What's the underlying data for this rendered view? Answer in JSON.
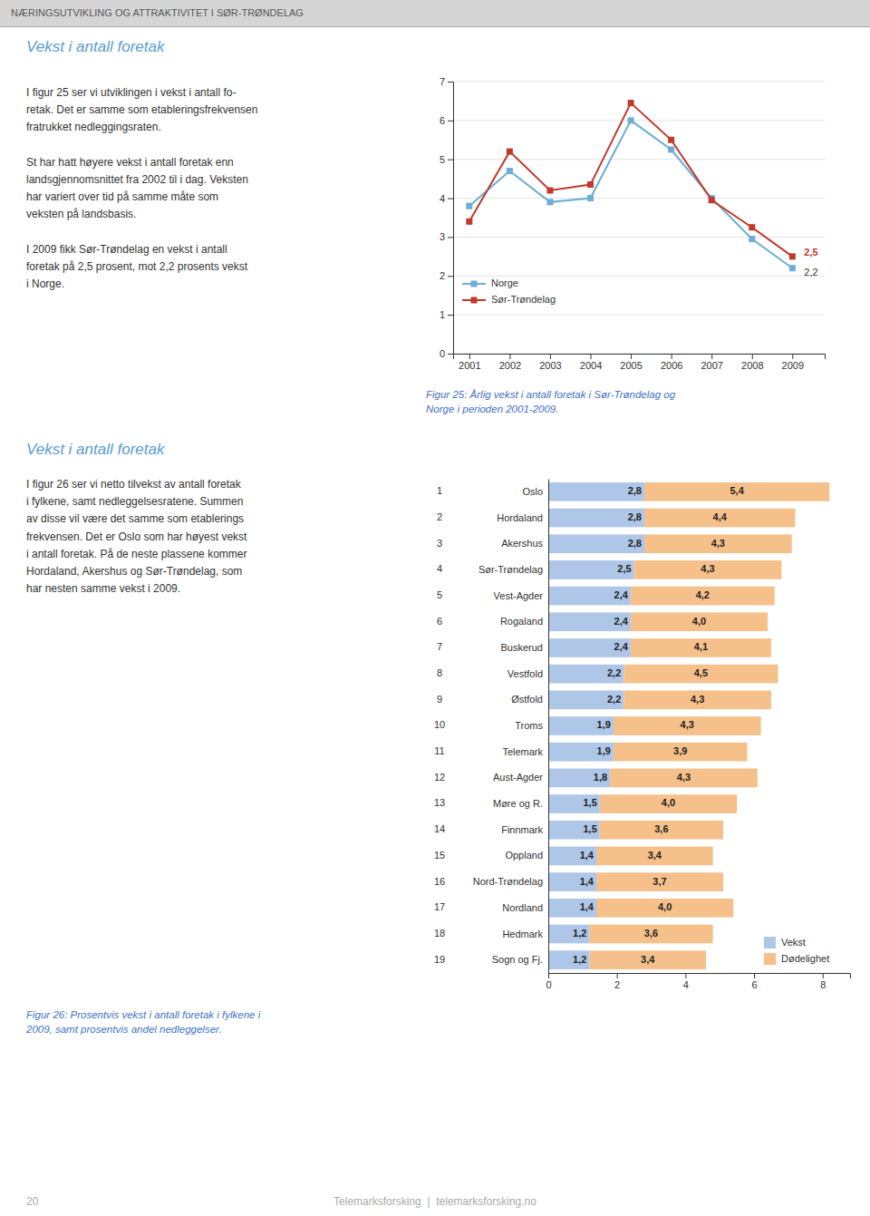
{
  "page_title": "NÆRINGSUTVIKLING OG ATTRAKTIVITET I SØR-TRØNDELAG",
  "section1_title": "Vekst i antall foretak",
  "section1_body": "I figur 25 ser vi utviklingen i vekst i antall fo-\nretak. Det er samme som etableringsfrekvensen\nfratrukket nedleggingsraten.\n\nSt har hatt høyere vekst i antall foretak enn\nlandsgjennomsnittet fra 2002 til i dag. Veksten\nhar variert over tid på samme måte som\nveksten på landsbasis.\n\nI 2009 fikk Sør-Trøndelag en vekst i antall\nforetak på 2,5 prosent, mot 2,2 prosents vekst\ni Norge.",
  "fig25_caption": "Figur 25: Årlig vekst i antall foretak i Sør-Trøndelag og\nNorge i perioden 2001-2009.",
  "section2_title": "Vekst i antall foretak",
  "section2_body": "I figur 26 ser vi netto tilvekst av antall foretak\ni fylkene, samt nedleggelsesratene. Summen\nav disse vil være det samme som etablerings\nfrekvensen. Det er Oslo som har høyest vekst\ni antall foretak. På de neste plassene kommer\nHordaland, Akershus og Sør-Trøndelag, som\nhar nesten samme vekst i 2009.",
  "fig26_caption": "Figur 26: Prosentvis vekst i antall foretak i fylkene i\n2009, samt prosentvis andel nedleggelser.",
  "page_number": "20",
  "footer_text": "Telemarksforsking  |  telemarksforsking.no",
  "chart_data": [
    {
      "type": "line",
      "x": [
        2001,
        2002,
        2003,
        2004,
        2005,
        2006,
        2007,
        2008,
        2009
      ],
      "xlim": [
        2000.6,
        2009.8
      ],
      "xticks": [
        2001,
        2002,
        2003,
        2004,
        2005,
        2006,
        2007,
        2008,
        2009
      ],
      "ylim": [
        0,
        7
      ],
      "yticks": [
        0,
        1,
        2,
        3,
        4,
        5,
        6,
        7
      ],
      "grid": true,
      "legend": "lower left",
      "series": [
        {
          "name": "Norge",
          "color": "#6baed6",
          "marker": "square",
          "values": [
            3.8,
            4.7,
            3.9,
            4.0,
            6.0,
            5.25,
            4.0,
            2.95,
            2.2
          ]
        },
        {
          "name": "Sør-Trøndelag",
          "color": "#c0392b",
          "marker": "square",
          "values": [
            3.4,
            5.2,
            4.2,
            4.35,
            6.45,
            5.5,
            3.95,
            3.25,
            2.5
          ]
        }
      ],
      "annotations": [
        {
          "text": "2,5",
          "x": 2009,
          "y": 2.5,
          "color": "#c0392b"
        },
        {
          "text": "2,2",
          "x": 2009,
          "y": 2.2,
          "color": "#333333"
        }
      ]
    },
    {
      "type": "bar",
      "orientation": "horizontal",
      "stacked": true,
      "data_labels": true,
      "grid": false,
      "legend": "lower right",
      "categories": [
        "Oslo",
        "Hordaland",
        "Akershus",
        "Sør-Trøndelag",
        "Vest-Agder",
        "Rogaland",
        "Buskerud",
        "Vestfold",
        "Østfold",
        "Troms",
        "Telemark",
        "Aust-Agder",
        "Møre og R.",
        "Finnmark",
        "Oppland",
        "Nord-Trøndelag",
        "Nordland",
        "Hedmark",
        "Sogn og Fj."
      ],
      "ranks": [
        "1",
        "2",
        "3",
        "4",
        "5",
        "6",
        "7",
        "8",
        "9",
        "10",
        "11",
        "12",
        "13",
        "14",
        "15",
        "16",
        "17",
        "18",
        "19"
      ],
      "xlim": [
        0,
        8.8
      ],
      "xticks": [
        0,
        2,
        4,
        6,
        8
      ],
      "series": [
        {
          "name": "Vekst",
          "color": "#aec6e8",
          "values": [
            2.8,
            2.8,
            2.8,
            2.5,
            2.4,
            2.4,
            2.4,
            2.2,
            2.2,
            1.9,
            1.9,
            1.8,
            1.5,
            1.5,
            1.4,
            1.4,
            1.4,
            1.2,
            1.2
          ],
          "value_labels": [
            "2,8",
            "2,8",
            "2,8",
            "2,5",
            "2,4",
            "2,4",
            "2,4",
            "2,2",
            "2,2",
            "1,9",
            "1,9",
            "1,8",
            "1,5",
            "1,5",
            "1,4",
            "1,4",
            "1,4",
            "1,2",
            "1,2"
          ]
        },
        {
          "name": "Dødelighet",
          "color": "#f5c08a",
          "values": [
            5.4,
            4.4,
            4.3,
            4.3,
            4.2,
            4.0,
            4.1,
            4.5,
            4.3,
            4.3,
            3.9,
            4.3,
            4.0,
            3.6,
            3.4,
            3.7,
            4.0,
            3.6,
            3.4
          ],
          "value_labels": [
            "5,4",
            "4,4",
            "4,3",
            "4,3",
            "4,2",
            "4,0",
            "4,1",
            "4,5",
            "4,3",
            "4,3",
            "3,9",
            "4,3",
            "4,0",
            "3,6",
            "3,4",
            "3,7",
            "4,0",
            "3,6",
            "3,4"
          ]
        }
      ]
    }
  ]
}
